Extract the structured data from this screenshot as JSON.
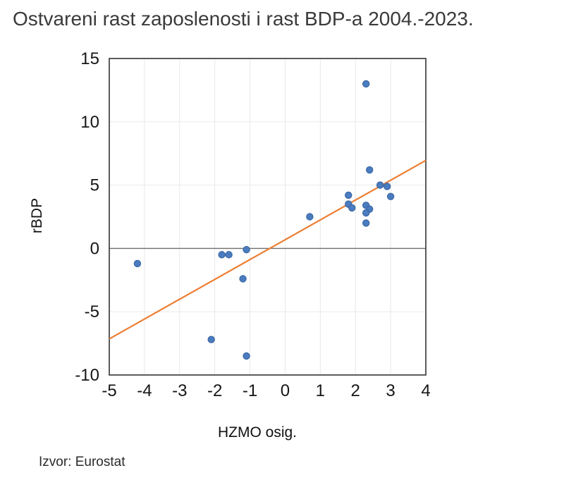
{
  "source": "Izvor: Eurostat",
  "chart_data": {
    "type": "scatter",
    "title": "Ostvareni rast zaposlenosti i rast BDP-a 2004.-2023.",
    "xlabel": "HZMO osig.",
    "ylabel": "rBDP",
    "xlim": [
      -5,
      4
    ],
    "ylim": [
      -10,
      15
    ],
    "x_ticks": [
      -5,
      -4,
      -3,
      -2,
      -1,
      0,
      1,
      2,
      3,
      4
    ],
    "y_ticks": [
      -10,
      -5,
      0,
      5,
      10,
      15
    ],
    "grid": true,
    "legend": false,
    "points": [
      [
        -4.2,
        -1.2
      ],
      [
        -2.1,
        -7.2
      ],
      [
        -1.8,
        -0.5
      ],
      [
        -1.6,
        -0.5
      ],
      [
        -1.2,
        -2.4
      ],
      [
        -1.1,
        -8.5
      ],
      [
        -1.1,
        -0.1
      ],
      [
        0.7,
        2.5
      ],
      [
        1.8,
        4.2
      ],
      [
        1.8,
        3.5
      ],
      [
        1.9,
        3.2
      ],
      [
        2.3,
        3.4
      ],
      [
        2.4,
        3.1
      ],
      [
        2.3,
        2.8
      ],
      [
        2.3,
        2.0
      ],
      [
        2.3,
        13.0
      ],
      [
        2.4,
        6.2
      ],
      [
        2.7,
        5.0
      ],
      [
        2.9,
        4.9
      ],
      [
        3.0,
        4.1
      ]
    ],
    "trendline": {
      "x1": -5,
      "y1": -7.15,
      "x2": 4,
      "y2": 6.95,
      "slope": 1.57,
      "intercept": 0.68
    },
    "colors": {
      "point_fill": "#4a7cbf",
      "point_stroke": "#3a67a5",
      "trendline": "#ed7d31",
      "gridline": "#e9e9e9",
      "zero_line": "#6e6e6e",
      "plot_border": "#3f3f3f",
      "title_text": "#3a3a3a",
      "tick_text": "#161616"
    }
  }
}
